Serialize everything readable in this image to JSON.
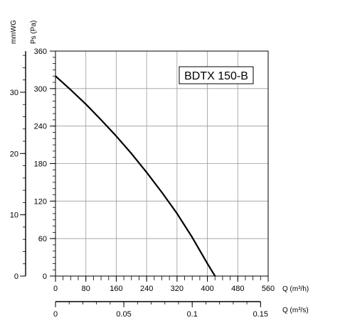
{
  "chart_data": {
    "type": "line",
    "title": "",
    "model_label": "BDTX 150-B",
    "xlabel": "Q (m³/h)",
    "x2label": "Q (m³/s)",
    "ylabel": "Ps (Pa)",
    "y2label": "mmWG",
    "xlim": [
      0,
      560
    ],
    "ylim": [
      0,
      360
    ],
    "x_ticks": [
      0,
      80,
      160,
      240,
      320,
      400,
      480,
      560
    ],
    "x_tick_labels": [
      "0",
      "80",
      "160",
      "240",
      "320",
      "400",
      "480",
      "560"
    ],
    "y_ticks": [
      0,
      60,
      120,
      180,
      240,
      300,
      360
    ],
    "y_tick_labels": [
      "0",
      "60",
      "120",
      "180",
      "240",
      "300",
      "360"
    ],
    "x2_ticks": [
      0,
      0.05,
      0.1,
      0.15
    ],
    "x2_tick_labels": [
      "0",
      "0.05",
      "0.1",
      "0.15"
    ],
    "y2_ticks": [
      0,
      10,
      20,
      30
    ],
    "y2_tick_labels": [
      "0",
      "10",
      "20",
      "30"
    ],
    "grid": true,
    "series": [
      {
        "x": [
          0,
          40,
          80,
          120,
          160,
          200,
          240,
          280,
          320,
          360,
          400,
          420
        ],
        "y": [
          320,
          298,
          275,
          250,
          224,
          196,
          166,
          134,
          100,
          62,
          20,
          0
        ]
      }
    ]
  }
}
